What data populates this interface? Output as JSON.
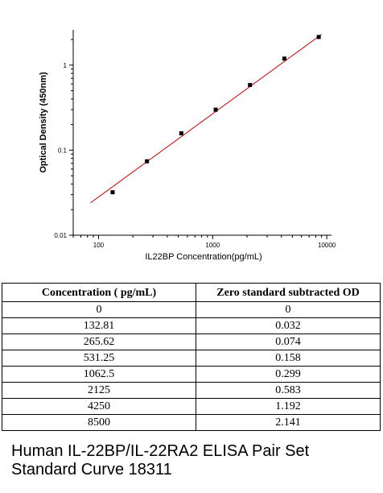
{
  "chart_data": {
    "type": "scatter",
    "xlabel": "IL22BP  Concentration(pg/mL)",
    "ylabel": "Optical Density (450nm)",
    "xscale": "log",
    "yscale": "log",
    "xlim": [
      60,
      11000
    ],
    "ylim": [
      0.01,
      2.6
    ],
    "x_ticks": [
      100,
      1000,
      10000
    ],
    "x_tick_labels": [
      "100",
      "1000",
      "10000"
    ],
    "y_ticks": [
      0.01,
      0.1,
      1
    ],
    "y_tick_labels": [
      "0.01",
      "0.1",
      "1"
    ],
    "grid": false,
    "series": [
      {
        "x": [
          132.81,
          265.62,
          531.25,
          1062.5,
          2125,
          4250,
          8500
        ],
        "y": [
          0.032,
          0.074,
          0.158,
          0.299,
          0.583,
          1.192,
          2.141
        ],
        "marker_color": "#000000"
      }
    ],
    "fit_line": {
      "x": [
        85,
        9000
      ],
      "y": [
        0.024,
        2.3
      ],
      "color": "#cc0000"
    }
  },
  "table": {
    "headers": [
      "Concentration ( pg/mL)",
      "Zero standard subtracted OD"
    ],
    "rows": [
      [
        "0",
        "0"
      ],
      [
        "132.81",
        "0.032"
      ],
      [
        "265.62",
        "0.074"
      ],
      [
        "531.25",
        "0.158"
      ],
      [
        "1062.5",
        "0.299"
      ],
      [
        "2125",
        "0.583"
      ],
      [
        "4250",
        "1.192"
      ],
      [
        "8500",
        "2.141"
      ]
    ]
  },
  "caption": {
    "line1": "Human IL-22BP/IL-22RA2 ELISA Pair Set",
    "line2": "Standard Curve 18311"
  }
}
